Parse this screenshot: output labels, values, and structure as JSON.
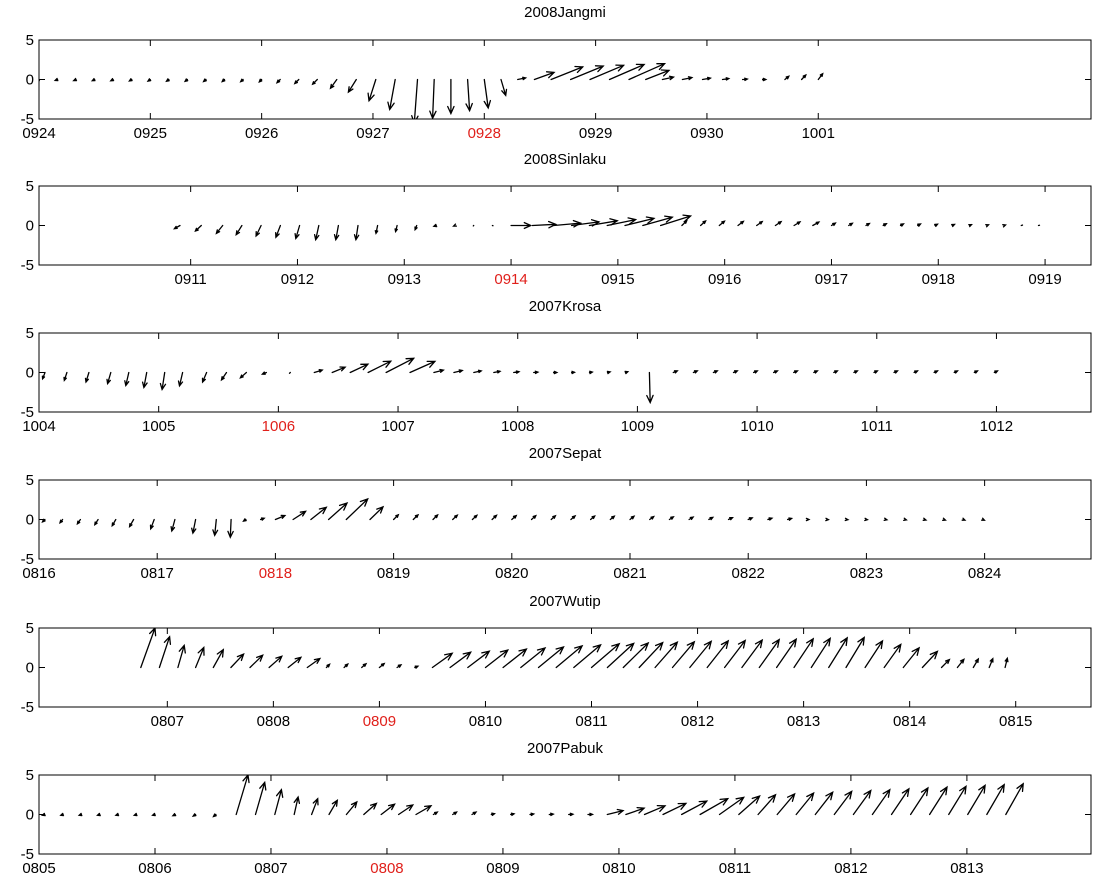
{
  "chart_data": [
    {
      "type": "quiver",
      "title": "2008Jangmi",
      "ylim": [
        -5,
        5
      ],
      "yticks": [
        "5",
        "0",
        "-5"
      ],
      "xlim": [
        0,
        9.45
      ],
      "xticks": [
        {
          "label": "0924",
          "x": 0,
          "color": "#000000"
        },
        {
          "label": "0925",
          "x": 1,
          "color": "#000000"
        },
        {
          "label": "0926",
          "x": 2,
          "color": "#000000"
        },
        {
          "label": "0927",
          "x": 3,
          "color": "#000000"
        },
        {
          "label": "0928",
          "x": 4,
          "color": "#e0201b"
        },
        {
          "label": "0929",
          "x": 5,
          "color": "#000000"
        },
        {
          "label": "0930",
          "x": 6,
          "color": "#000000"
        },
        {
          "label": "1001",
          "x": 7,
          "color": "#000000"
        }
      ],
      "segments": [
        {
          "t0": 0.0,
          "t1": 1.0,
          "u0": -0.3,
          "v0": -0.1,
          "u1": -0.3,
          "v1": -0.2
        },
        {
          "t0": 1.0,
          "t1": 2.0,
          "u0": -0.3,
          "v0": -0.2,
          "u1": -0.3,
          "v1": -0.3
        },
        {
          "t0": 2.0,
          "t1": 2.5,
          "u0": -0.3,
          "v0": -0.3,
          "u1": -0.6,
          "v1": -0.6
        },
        {
          "t0": 2.5,
          "t1": 2.85,
          "u0": -0.6,
          "v0": -0.6,
          "u1": -1.0,
          "v1": -1.6
        },
        {
          "t0": 2.85,
          "t1": 3.2,
          "u0": -1.0,
          "v0": -1.6,
          "u1": -0.7,
          "v1": -3.8
        },
        {
          "t0": 3.2,
          "t1": 3.4,
          "u0": -0.7,
          "v0": -3.8,
          "u1": -0.4,
          "v1": -5.5
        },
        {
          "t0": 3.4,
          "t1": 3.7,
          "u0": -0.4,
          "v0": -5.5,
          "u1": 0.0,
          "v1": -4.3
        },
        {
          "t0": 3.7,
          "t1": 4.0,
          "u0": 0.0,
          "v0": -4.3,
          "u1": 0.5,
          "v1": -3.6
        },
        {
          "t0": 4.0,
          "t1": 4.15,
          "u0": 0.5,
          "v0": -3.6,
          "u1": 0.6,
          "v1": -2.0
        },
        {
          "t0": 4.15,
          "t1": 4.3,
          "u0": 0.6,
          "v0": -2.0,
          "u1": 0.8,
          "v1": -0.3
        },
        {
          "t0": 4.3,
          "t1": 4.6,
          "u0": 1.0,
          "v0": 0.2,
          "u1": 4.0,
          "v1": 1.6
        },
        {
          "t0": 4.6,
          "t1": 5.3,
          "u0": 4.0,
          "v0": 1.6,
          "u1": 4.5,
          "v1": 2.0
        },
        {
          "t0": 5.3,
          "t1": 5.6,
          "u0": 4.5,
          "v0": 2.0,
          "u1": 1.4,
          "v1": 0.3
        },
        {
          "t0": 5.6,
          "t1": 6.5,
          "u0": 1.4,
          "v0": 0.3,
          "u1": 0.4,
          "v1": 0.0
        },
        {
          "t0": 6.5,
          "t1": 6.7,
          "u0": 0.4,
          "v0": 0.0,
          "u1": 0.4,
          "v1": 0.3
        },
        {
          "t0": 6.7,
          "t1": 7.15,
          "u0": 0.5,
          "v0": 0.4,
          "u1": 0.6,
          "v1": 0.9
        }
      ]
    },
    {
      "type": "quiver",
      "title": "2008Sinlaku",
      "ylim": [
        -5,
        5
      ],
      "yticks": [
        "5",
        "0",
        "-5"
      ],
      "xlim": [
        -1.42,
        8.43
      ],
      "xticks": [
        {
          "label": "0911",
          "x": 0,
          "color": "#000000"
        },
        {
          "label": "0912",
          "x": 1,
          "color": "#000000"
        },
        {
          "label": "0913",
          "x": 2,
          "color": "#000000"
        },
        {
          "label": "0914",
          "x": 3,
          "color": "#e0201b"
        },
        {
          "label": "0915",
          "x": 4,
          "color": "#000000"
        },
        {
          "label": "0916",
          "x": 5,
          "color": "#000000"
        },
        {
          "label": "0917",
          "x": 6,
          "color": "#000000"
        },
        {
          "label": "0918",
          "x": 7,
          "color": "#000000"
        },
        {
          "label": "0919",
          "x": 8,
          "color": "#000000"
        }
      ],
      "segments": [
        {
          "t0": -0.1,
          "t1": 0.3,
          "u0": -0.7,
          "v0": -0.4,
          "u1": -0.8,
          "v1": -1.0
        },
        {
          "t0": 0.3,
          "t1": 1.2,
          "u0": -0.8,
          "v0": -1.0,
          "u1": -0.4,
          "v1": -1.8
        },
        {
          "t0": 1.2,
          "t1": 1.75,
          "u0": -0.4,
          "v0": -1.8,
          "u1": -0.2,
          "v1": -1.8
        },
        {
          "t0": 1.75,
          "t1": 2.3,
          "u0": -0.2,
          "v0": -1.0,
          "u1": -0.2,
          "v1": -0.3
        },
        {
          "t0": 2.3,
          "t1": 3.0,
          "u0": -0.3,
          "v0": -0.1,
          "u1": 0.2,
          "v1": 0.0
        },
        {
          "t0": 3.0,
          "t1": 3.4,
          "u0": 2.5,
          "v0": 0.0,
          "u1": 3.4,
          "v1": 0.3
        },
        {
          "t0": 3.4,
          "t1": 4.4,
          "u0": 3.4,
          "v0": 0.3,
          "u1": 3.8,
          "v1": 1.2
        },
        {
          "t0": 4.4,
          "t1": 4.6,
          "u0": 3.8,
          "v0": 1.2,
          "u1": 0.6,
          "v1": 0.6
        },
        {
          "t0": 4.6,
          "t1": 6.0,
          "u0": 0.6,
          "v0": 0.6,
          "u1": 0.8,
          "v1": 0.4
        },
        {
          "t0": 6.0,
          "t1": 8.1,
          "u0": 0.5,
          "v0": 0.3,
          "u1": 0.1,
          "v1": 0.0
        }
      ]
    },
    {
      "type": "quiver",
      "title": "2007Krosa",
      "ylim": [
        -5,
        5
      ],
      "yticks": [
        "5",
        "0",
        "-5"
      ],
      "xlim": [
        0,
        8.79
      ],
      "xticks": [
        {
          "label": "1004",
          "x": 0,
          "color": "#000000"
        },
        {
          "label": "1005",
          "x": 1,
          "color": "#000000"
        },
        {
          "label": "1006",
          "x": 2,
          "color": "#e0201b"
        },
        {
          "label": "1007",
          "x": 3,
          "color": "#000000"
        },
        {
          "label": "1008",
          "x": 4,
          "color": "#000000"
        },
        {
          "label": "1009",
          "x": 5,
          "color": "#000000"
        },
        {
          "label": "1010",
          "x": 6,
          "color": "#000000"
        },
        {
          "label": "1011",
          "x": 7,
          "color": "#000000"
        },
        {
          "label": "1012",
          "x": 8,
          "color": "#000000"
        }
      ],
      "segments": [
        {
          "t0": 0.05,
          "t1": 0.6,
          "u0": -0.3,
          "v0": -0.8,
          "u1": -0.4,
          "v1": -1.4
        },
        {
          "t0": 0.6,
          "t1": 1.2,
          "u0": -0.4,
          "v0": -1.4,
          "u1": -0.3,
          "v1": -2.4
        },
        {
          "t0": 1.2,
          "t1": 1.4,
          "u0": -0.4,
          "v0": -1.7,
          "u1": -0.5,
          "v1": -1.2
        },
        {
          "t0": 1.4,
          "t1": 1.9,
          "u0": -0.5,
          "v0": -1.2,
          "u1": -0.9,
          "v1": -0.4
        },
        {
          "t0": 1.9,
          "t1": 2.3,
          "u0": -0.5,
          "v0": -0.2,
          "u1": 0.3,
          "v1": 0.0
        },
        {
          "t0": 2.3,
          "t1": 2.9,
          "u0": 1.0,
          "v0": 0.3,
          "u1": 3.5,
          "v1": 1.8
        },
        {
          "t0": 2.9,
          "t1": 3.3,
          "u0": 3.5,
          "v0": 1.8,
          "u1": 2.8,
          "v1": 1.0
        },
        {
          "t0": 3.3,
          "t1": 4.3,
          "u0": 1.2,
          "v0": 0.3,
          "u1": 0.4,
          "v1": 0.0
        },
        {
          "t0": 4.3,
          "t1": 4.9,
          "u0": 0.4,
          "v0": 0.0,
          "u1": 0.3,
          "v1": 0.1
        },
        {
          "t0": 4.9,
          "t1": 5.1,
          "u0": 0.3,
          "v0": 0.1,
          "u1": 0.1,
          "v1": -3.8
        },
        {
          "t0": 5.1,
          "t1": 5.3,
          "u0": 0.1,
          "v0": -3.8,
          "u1": 0.5,
          "v1": 0.2
        },
        {
          "t0": 5.3,
          "t1": 8.15,
          "u0": 0.5,
          "v0": 0.2,
          "u1": 0.4,
          "v1": 0.2
        }
      ]
    },
    {
      "type": "quiver",
      "title": "2007Sepat",
      "ylim": [
        -5,
        5
      ],
      "yticks": [
        "5",
        "0",
        "-5"
      ],
      "xlim": [
        0,
        8.9
      ],
      "xticks": [
        {
          "label": "0816",
          "x": 0,
          "color": "#000000"
        },
        {
          "label": "0817",
          "x": 1,
          "color": "#000000"
        },
        {
          "label": "0818",
          "x": 2,
          "color": "#e0201b"
        },
        {
          "label": "0819",
          "x": 3,
          "color": "#000000"
        },
        {
          "label": "0820",
          "x": 4,
          "color": "#000000"
        },
        {
          "label": "0821",
          "x": 5,
          "color": "#000000"
        },
        {
          "label": "0822",
          "x": 6,
          "color": "#000000"
        },
        {
          "label": "0823",
          "x": 7,
          "color": "#000000"
        },
        {
          "label": "0824",
          "x": 8,
          "color": "#000000"
        }
      ],
      "segments": [
        {
          "t0": 0.05,
          "t1": 0.8,
          "u0": -0.3,
          "v0": -0.3,
          "u1": -0.5,
          "v1": -0.9
        },
        {
          "t0": 0.8,
          "t1": 1.5,
          "u0": -0.5,
          "v0": -0.9,
          "u1": -0.3,
          "v1": -2.0
        },
        {
          "t0": 1.5,
          "t1": 1.75,
          "u0": -0.2,
          "v0": -2.0,
          "u1": 0.0,
          "v1": -2.5
        },
        {
          "t0": 1.75,
          "t1": 2.0,
          "u0": -0.3,
          "v0": -0.2,
          "u1": 1.2,
          "v1": 0.5
        },
        {
          "t0": 2.0,
          "t1": 2.6,
          "u0": 1.2,
          "v0": 0.5,
          "u1": 2.7,
          "v1": 2.6
        },
        {
          "t0": 2.6,
          "t1": 3.0,
          "u0": 2.7,
          "v0": 2.6,
          "u1": 0.6,
          "v1": 0.6
        },
        {
          "t0": 3.0,
          "t1": 5.0,
          "u0": 0.6,
          "v0": 0.6,
          "u1": 0.5,
          "v1": 0.4
        },
        {
          "t0": 5.0,
          "t1": 6.5,
          "u0": 0.5,
          "v0": 0.4,
          "u1": 0.5,
          "v1": 0.1
        },
        {
          "t0": 6.5,
          "t1": 8.15,
          "u0": 0.2,
          "v0": 0.0,
          "u1": 0.2,
          "v1": -0.1
        }
      ]
    },
    {
      "type": "quiver",
      "title": "2007Wutip",
      "ylim": [
        -5,
        5
      ],
      "yticks": [
        "5",
        "0",
        "-5"
      ],
      "xlim": [
        -1.21,
        8.71
      ],
      "xticks": [
        {
          "label": "0807",
          "x": 0,
          "color": "#000000"
        },
        {
          "label": "0808",
          "x": 1,
          "color": "#000000"
        },
        {
          "label": "0809",
          "x": 2,
          "color": "#e0201b"
        },
        {
          "label": "0810",
          "x": 3,
          "color": "#000000"
        },
        {
          "label": "0811",
          "x": 4,
          "color": "#000000"
        },
        {
          "label": "0812",
          "x": 5,
          "color": "#000000"
        },
        {
          "label": "0813",
          "x": 6,
          "color": "#000000"
        },
        {
          "label": "0814",
          "x": 7,
          "color": "#000000"
        },
        {
          "label": "0815",
          "x": 8,
          "color": "#000000"
        }
      ],
      "segments": [
        {
          "t0": -0.25,
          "t1": 0.1,
          "u0": 1.8,
          "v0": 5.0,
          "u1": 0.8,
          "v1": 2.8
        },
        {
          "t0": 0.1,
          "t1": 0.6,
          "u0": 0.8,
          "v0": 2.8,
          "u1": 1.5,
          "v1": 2.0
        },
        {
          "t0": 0.6,
          "t1": 1.5,
          "u0": 1.6,
          "v0": 1.7,
          "u1": 1.6,
          "v1": 1.0
        },
        {
          "t0": 1.5,
          "t1": 2.0,
          "u0": 0.4,
          "v0": 0.4,
          "u1": 0.6,
          "v1": 0.5
        },
        {
          "t0": 2.0,
          "t1": 2.5,
          "u0": 0.6,
          "v0": 0.5,
          "u1": 0.3,
          "v1": 0.0
        },
        {
          "t0": 2.5,
          "t1": 4.0,
          "u0": 2.5,
          "v0": 1.8,
          "u1": 3.5,
          "v1": 3.0
        },
        {
          "t0": 4.0,
          "t1": 4.6,
          "u0": 3.5,
          "v0": 3.0,
          "u1": 2.8,
          "v1": 3.2
        },
        {
          "t0": 4.6,
          "t1": 6.4,
          "u0": 2.8,
          "v0": 3.2,
          "u1": 2.3,
          "v1": 3.8
        },
        {
          "t0": 6.4,
          "t1": 7.3,
          "u0": 2.3,
          "v0": 3.8,
          "u1": 1.8,
          "v1": 1.6
        },
        {
          "t0": 7.3,
          "t1": 8.05,
          "u0": 1.0,
          "v0": 1.0,
          "u1": 0.1,
          "v1": 1.2
        }
      ]
    },
    {
      "type": "quiver",
      "title": "2007Pabuk",
      "ylim": [
        -5,
        5
      ],
      "yticks": [
        "5",
        "0",
        "-5"
      ],
      "xlim": [
        0,
        9.07
      ],
      "xticks": [
        {
          "label": "0805",
          "x": 0,
          "color": "#000000"
        },
        {
          "label": "0806",
          "x": 1,
          "color": "#000000"
        },
        {
          "label": "0807",
          "x": 2,
          "color": "#000000"
        },
        {
          "label": "0808",
          "x": 3,
          "color": "#e0201b"
        },
        {
          "label": "0809",
          "x": 4,
          "color": "#000000"
        },
        {
          "label": "0810",
          "x": 5,
          "color": "#000000"
        },
        {
          "label": "0811",
          "x": 6,
          "color": "#000000"
        },
        {
          "label": "0812",
          "x": 7,
          "color": "#000000"
        },
        {
          "label": "0813",
          "x": 8,
          "color": "#000000"
        }
      ],
      "segments": [
        {
          "t0": 0.05,
          "t1": 1.0,
          "u0": -0.3,
          "v0": -0.1,
          "u1": -0.3,
          "v1": -0.1
        },
        {
          "t0": 1.0,
          "t1": 1.7,
          "u0": -0.3,
          "v0": -0.1,
          "u1": -0.3,
          "v1": -0.3
        },
        {
          "t0": 1.7,
          "t1": 2.2,
          "u0": 1.5,
          "v0": 5.0,
          "u1": 0.5,
          "v1": 2.2
        },
        {
          "t0": 2.2,
          "t1": 2.8,
          "u0": 0.5,
          "v0": 2.2,
          "u1": 1.6,
          "v1": 1.4
        },
        {
          "t0": 2.8,
          "t1": 3.4,
          "u0": 1.6,
          "v0": 1.4,
          "u1": 2.0,
          "v1": 1.0
        },
        {
          "t0": 3.4,
          "t1": 3.9,
          "u0": 0.5,
          "v0": 0.3,
          "u1": 0.5,
          "v1": 0.3
        },
        {
          "t0": 3.9,
          "t1": 4.9,
          "u0": 0.4,
          "v0": 0.1,
          "u1": 0.6,
          "v1": 0.0
        },
        {
          "t0": 4.9,
          "t1": 5.7,
          "u0": 2.0,
          "v0": 0.5,
          "u1": 3.5,
          "v1": 2.0
        },
        {
          "t0": 5.7,
          "t1": 6.2,
          "u0": 3.5,
          "v0": 2.0,
          "u1": 2.2,
          "v1": 2.5
        },
        {
          "t0": 6.2,
          "t1": 8.5,
          "u0": 2.2,
          "v0": 2.5,
          "u1": 2.2,
          "v1": 4.0
        }
      ]
    }
  ]
}
